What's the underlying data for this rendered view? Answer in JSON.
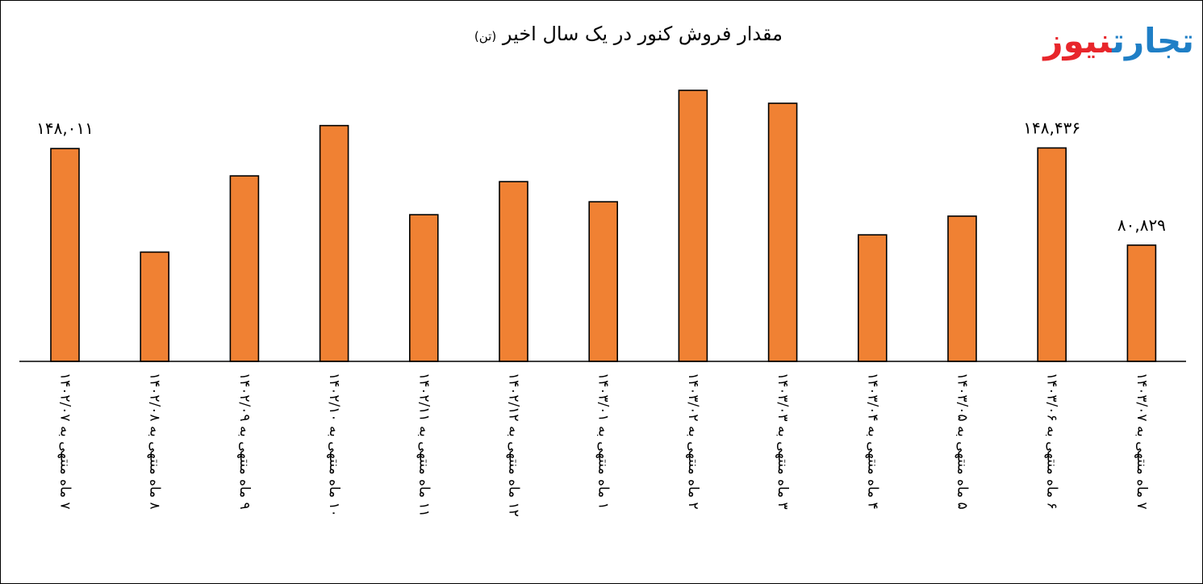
{
  "logo": {
    "part_a": "تجارت",
    "part_b": "نیوز"
  },
  "chart_data": {
    "type": "bar",
    "title": "مقدار فروش کنور در یک سال اخیر",
    "unit": "(تن)",
    "xlabel": "",
    "ylabel": "",
    "ylim": [
      0,
      210000
    ],
    "grid": false,
    "legend": "none",
    "bar_color": "#f08133",
    "categories": [
      "۷ ماه منتهی به ۱۴۰۲/۰۷",
      "۸ ماه منتهی به ۱۴۰۲/۰۸",
      "۹ ماه منتهی به ۱۴۰۲/۰۹",
      "۱۰ ماه منتهی به ۱۴۰۲/۱۰",
      "۱۱ ماه منتهی به ۱۴۰۲/۱۱",
      "۱۲ ماه منتهی به ۱۴۰۲/۱۲",
      "۱ ماه منتهی به ۱۴۰۳/۰۱",
      "۲ ماه منتهی به ۱۴۰۳/۰۲",
      "۳ ماه منتهی به ۱۴۰۳/۰۳",
      "۴ ماه منتهی به ۱۴۰۳/۰۴",
      "۵ ماه منتهی به ۱۴۰۳/۰۵",
      "۶ ماه منتهی به ۱۴۰۳/۰۶",
      "۷ ماه منتهی به ۱۴۰۳/۰۷"
    ],
    "values": [
      148011,
      76000,
      129000,
      164000,
      102000,
      125000,
      111000,
      188500,
      179500,
      88000,
      101000,
      148436,
      80829
    ],
    "data_labels": [
      "۱۴۸,۰۱۱",
      "",
      "",
      "",
      "",
      "",
      "",
      "",
      "",
      "",
      "",
      "۱۴۸,۴۳۶",
      "۸۰,۸۲۹"
    ]
  }
}
